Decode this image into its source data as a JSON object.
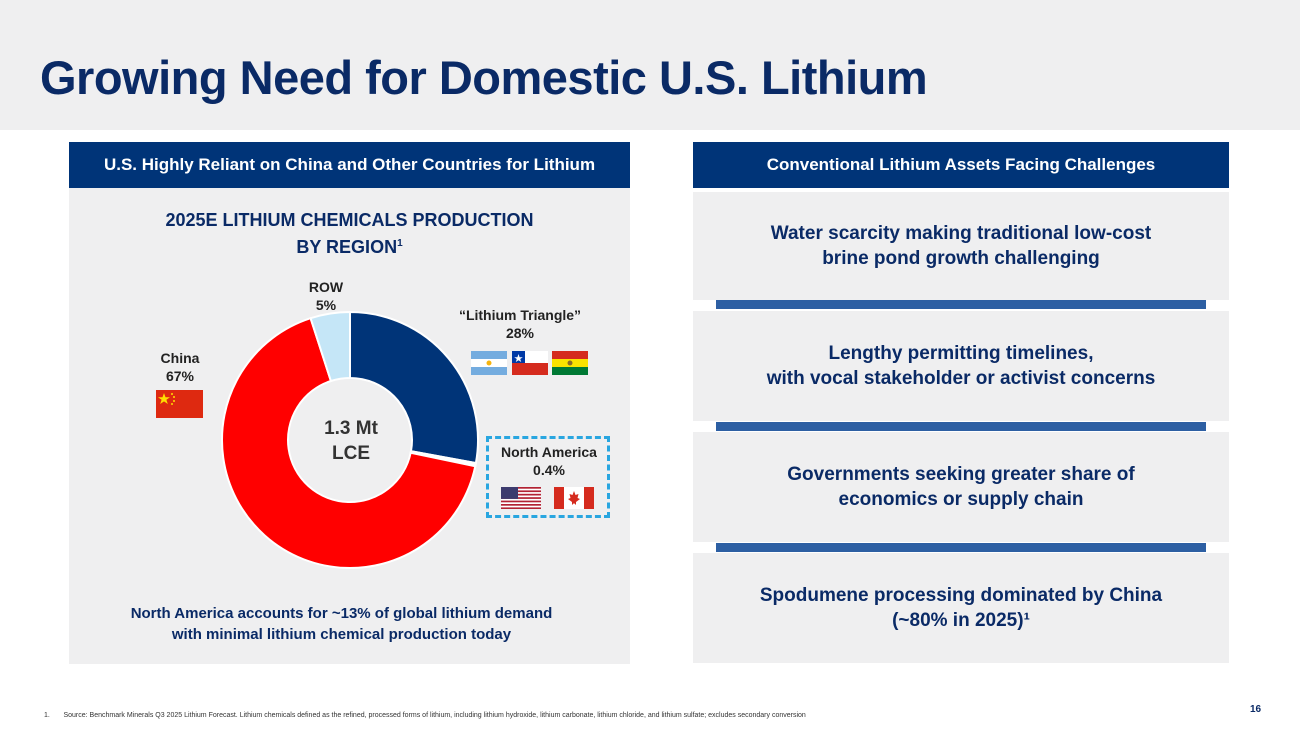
{
  "header": {
    "title": "Growing Need for Domestic U.S. Lithium"
  },
  "left_panel": {
    "header": "U.S. Highly Reliant on China and Other Countries for Lithium",
    "chart_title_line1": "2025E LITHIUM CHEMICALS PRODUCTION",
    "chart_title_line2": "BY REGION",
    "chart_title_sup": "1",
    "center_label_line1": "1.3 Mt",
    "center_label_line2": "LCE",
    "footnote_line1": "North America accounts for ~13% of global lithium demand",
    "footnote_line2": "with minimal lithium chemical production today"
  },
  "chart_data": {
    "type": "pie",
    "title": "2025E LITHIUM CHEMICALS PRODUCTION BY REGION",
    "center_label": "1.3 Mt LCE",
    "slices": [
      {
        "name": "“Lithium Triangle”",
        "label": "28%",
        "value": 28,
        "color": "#003478"
      },
      {
        "name": "North America",
        "label": "0.4%",
        "value": 0.4,
        "color": "#ffffff"
      },
      {
        "name": "China",
        "label": "67%",
        "value": 67,
        "color": "#ff0000"
      },
      {
        "name": "ROW",
        "label": "5%",
        "value": 5,
        "color": "#c5e6f7"
      }
    ]
  },
  "flags": {
    "lithium_triangle": [
      "argentina-flag",
      "chile-flag",
      "bolivia-flag"
    ],
    "china": [
      "china-flag"
    ],
    "north_america": [
      "usa-flag",
      "canada-flag"
    ]
  },
  "right_panel": {
    "header": "Conventional Lithium Assets Facing Challenges",
    "challenges": [
      {
        "text": "Water scarcity making traditional low-cost\nbrine pond growth challenging"
      },
      {
        "text": "Lengthy permitting timelines,\nwith vocal stakeholder or activist concerns"
      },
      {
        "text": "Governments seeking greater share of\neconomics or supply chain"
      },
      {
        "text": "Spodumene processing dominated by China\n(~80% in 2025)¹"
      }
    ]
  },
  "footer": {
    "source": "1.       Source: Benchmark Minerals Q3 2025 Lithium Forecast. Lithium chemicals defined as the refined, processed forms of lithium, including lithium hydroxide, lithium carbonate, lithium chloride, and lithium sulfate; excludes secondary conversion",
    "page_number": "16"
  },
  "colors": {
    "navy": "#0a2a66",
    "header_blue": "#003478",
    "divider_blue": "#2d5fa3",
    "panel_gray": "#efeff0"
  }
}
